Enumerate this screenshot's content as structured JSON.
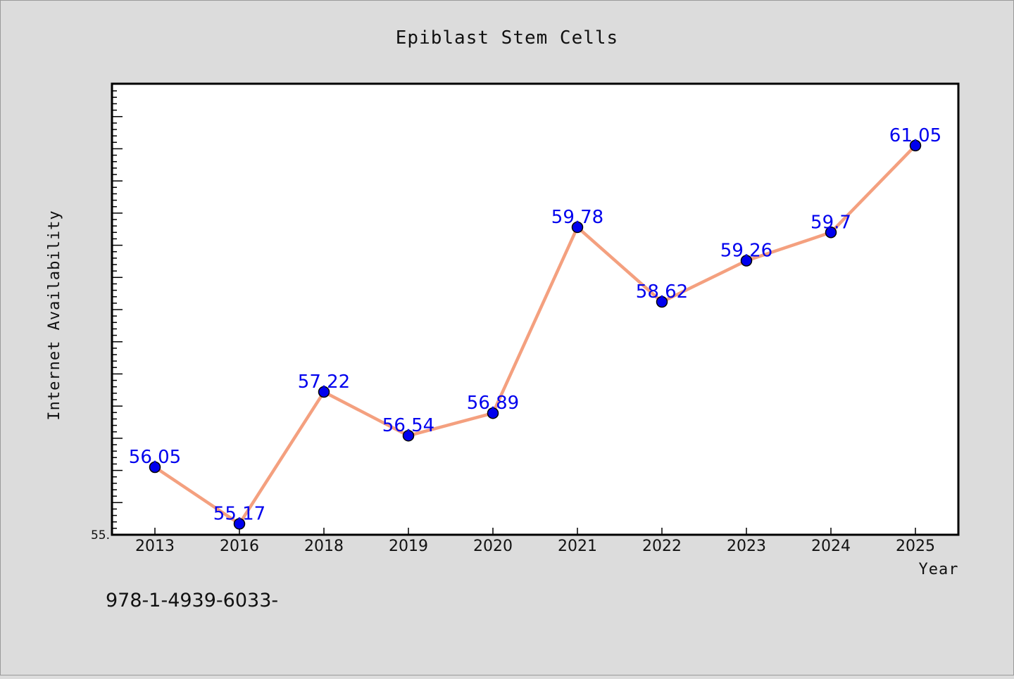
{
  "chart_data": {
    "type": "line",
    "title": "Epiblast Stem Cells",
    "xlabel": "Year",
    "ylabel": "Internet Availability",
    "categories": [
      "2013",
      "2016",
      "2018",
      "2019",
      "2020",
      "2021",
      "2022",
      "2023",
      "2024",
      "2025"
    ],
    "series": [
      {
        "values": [
          56.05,
          55.17,
          57.22,
          56.54,
          56.89,
          59.78,
          58.62,
          59.26,
          59.7,
          61.05
        ],
        "data_labels": [
          "56.05",
          "55.17",
          "57.22",
          "56.54",
          "56.89",
          "59.78",
          "58.62",
          "59.26",
          "59.7",
          "61.05"
        ],
        "line_color": "#f4a07f",
        "marker_color": "#0000ee"
      }
    ],
    "ylim": [
      55,
      62
    ],
    "y_tick_labels": [
      "55."
    ],
    "grid": false,
    "legend": "none"
  },
  "footer": {
    "text": "978-1-4939-6033-"
  }
}
